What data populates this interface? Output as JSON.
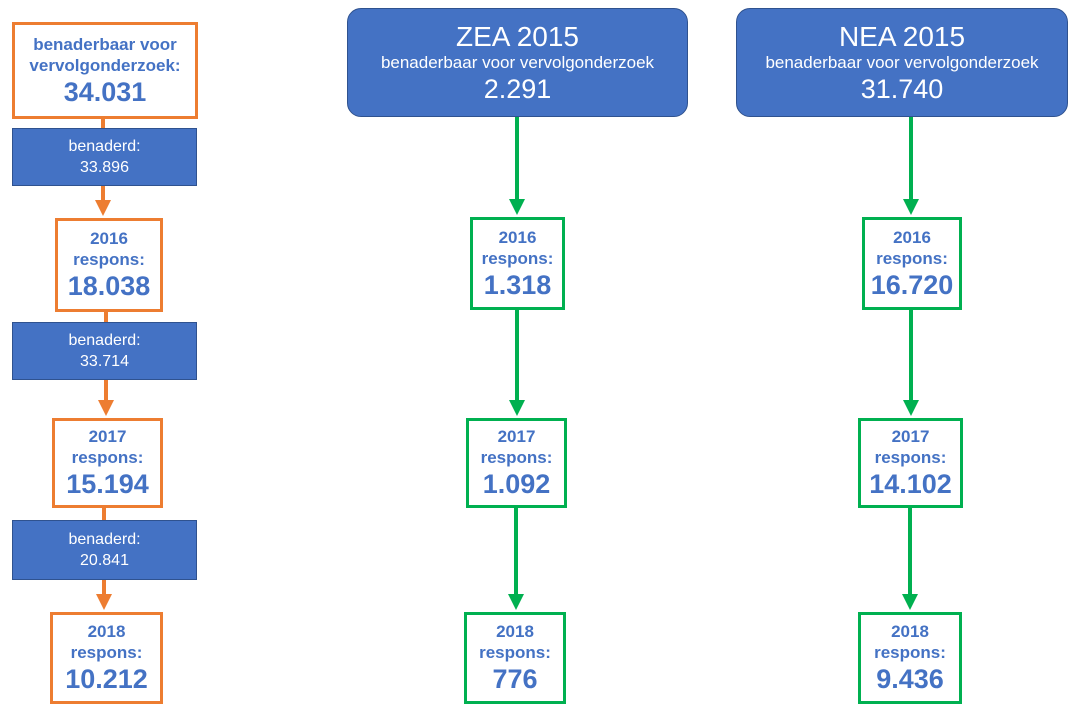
{
  "left": {
    "start": {
      "label": "benaderbaar voor vervolgonderzoek:",
      "value": "34.031"
    },
    "steps": [
      {
        "contacted_label": "benaderd:",
        "contacted": "33.896",
        "year": "2016",
        "label": "respons:",
        "value": "18.038"
      },
      {
        "contacted_label": "benaderd:",
        "contacted": "33.714",
        "year": "2017",
        "label": "respons:",
        "value": "15.194"
      },
      {
        "contacted_label": "benaderd:",
        "contacted": "20.841",
        "year": "2018",
        "label": "respons:",
        "value": "10.212"
      }
    ]
  },
  "columns": [
    {
      "title": "ZEA 2015",
      "subtitle": "benaderbaar voor vervolgonderzoek",
      "value": "2.291",
      "steps": [
        {
          "year": "2016",
          "label": "respons:",
          "value": "1.318"
        },
        {
          "year": "2017",
          "label": "respons:",
          "value": "1.092"
        },
        {
          "year": "2018",
          "label": "respons:",
          "value": "776"
        }
      ]
    },
    {
      "title": "NEA 2015",
      "subtitle": "benaderbaar voor vervolgonderzoek",
      "value": "31.740",
      "steps": [
        {
          "year": "2016",
          "label": "respons:",
          "value": "16.720"
        },
        {
          "year": "2017",
          "label": "respons:",
          "value": "14.102"
        },
        {
          "year": "2018",
          "label": "respons:",
          "value": "9.436"
        }
      ]
    }
  ]
}
